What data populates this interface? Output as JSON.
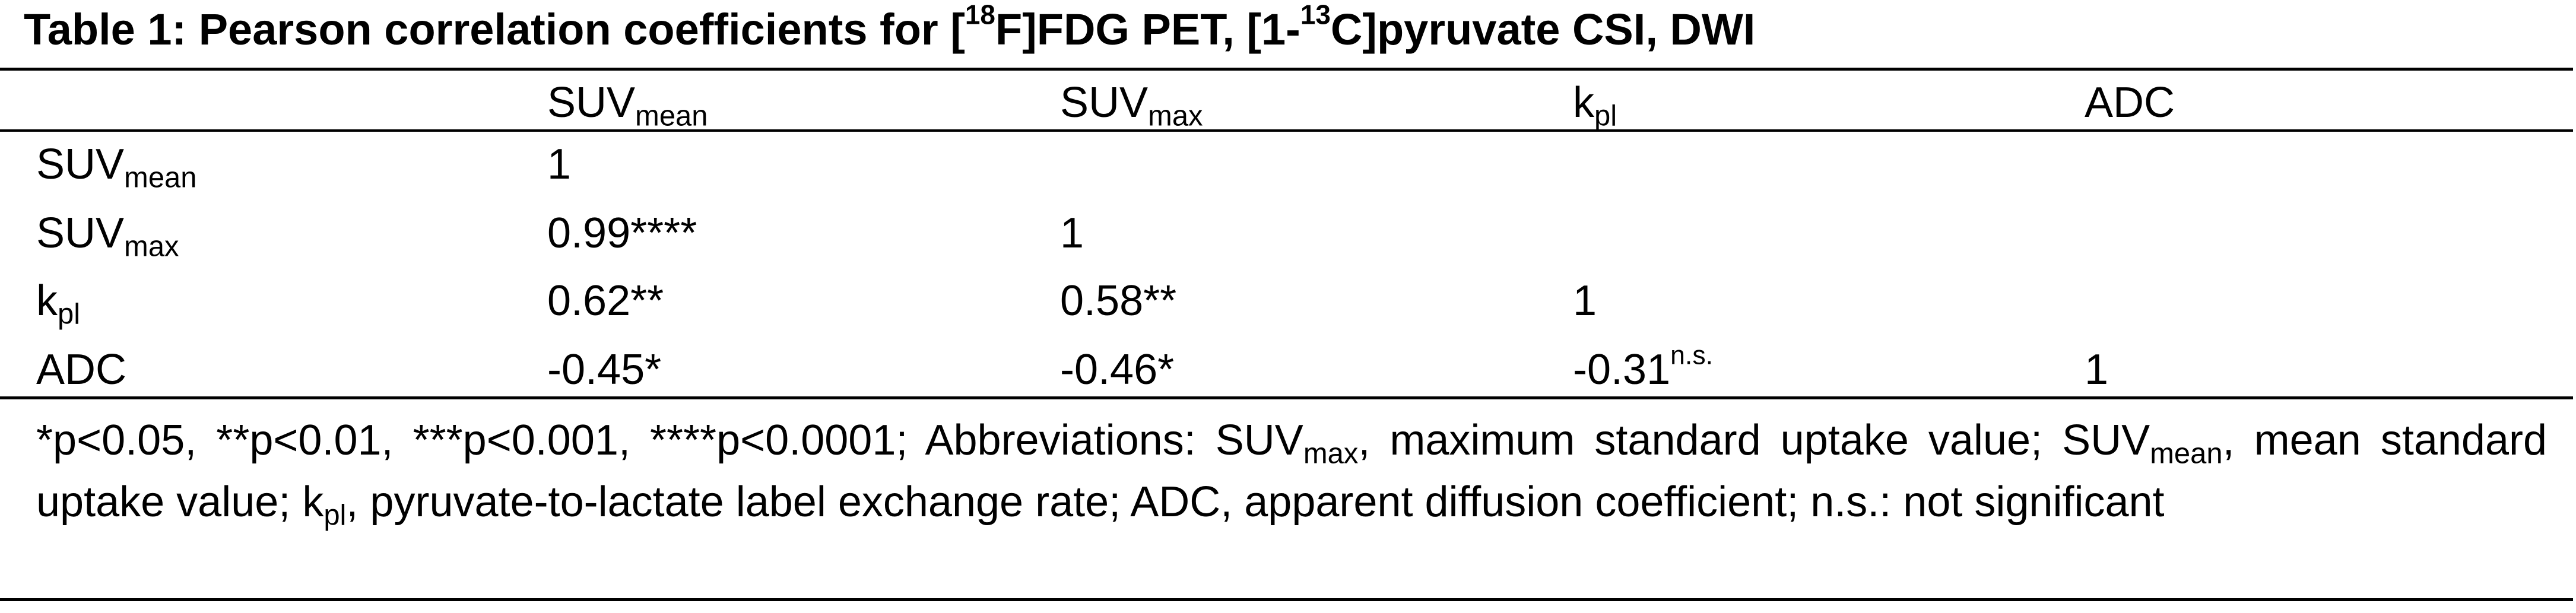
{
  "title": [
    "Table 1: Pearson correlation coefficients for [",
    "18",
    "F]FDG PET, [1-",
    "13",
    "C]pyruvate CSI, DWI"
  ],
  "table": {
    "columns": [
      [
        "SUV",
        "mean"
      ],
      [
        "SUV",
        "max"
      ],
      [
        "k",
        "pl"
      ],
      [
        "ADC"
      ]
    ],
    "rows": [
      {
        "label": [
          "SUV",
          "mean"
        ],
        "cells": [
          [
            "1"
          ]
        ]
      },
      {
        "label": [
          "SUV",
          "max"
        ],
        "cells": [
          [
            "0.99****"
          ],
          [
            "1"
          ]
        ]
      },
      {
        "label": [
          "k",
          "pl"
        ],
        "cells": [
          [
            "0.62**"
          ],
          [
            "0.58**"
          ],
          [
            "1"
          ]
        ]
      },
      {
        "label": [
          "ADC"
        ],
        "cells": [
          [
            "-0.45*"
          ],
          [
            "-0.46*"
          ],
          [
            "-0.31",
            "n.s."
          ],
          [
            "1"
          ]
        ]
      }
    ]
  },
  "footnote": [
    "*p<0.05, **p<0.01, ***p<0.001, ****p<0.0001; Abbreviations: SUV",
    "max",
    ", maximum standard uptake value; SUV",
    "mean",
    ", mean standard uptake value; k",
    "pl",
    ", pyruvate-to-lactate label exchange rate; ADC, apparent diffusion coefficient; n.s.: not significant"
  ]
}
